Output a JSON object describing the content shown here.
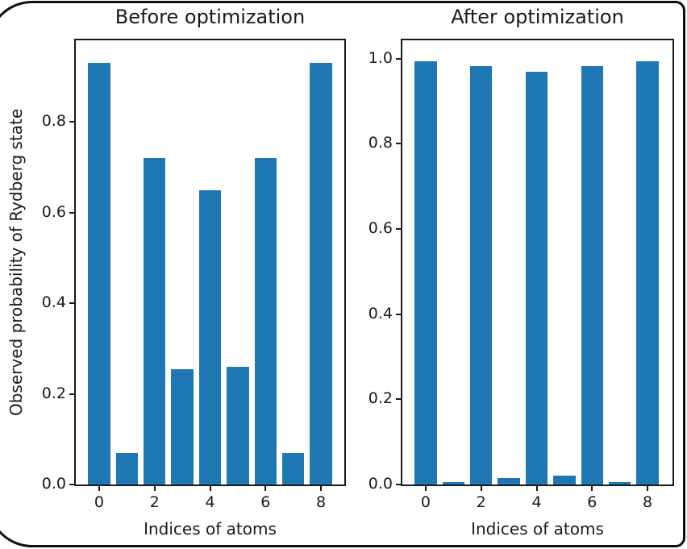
{
  "figure": {
    "frame_border_color": "#0f0f0f",
    "background_color": "#ffffff",
    "text_color": "#1a1a1a"
  },
  "chart_data": [
    {
      "type": "bar",
      "title": "Before optimization",
      "xlabel": "Indices of atoms",
      "ylabel": "Observed probability of Rydberg state",
      "categories": [
        0,
        1,
        2,
        3,
        4,
        5,
        6,
        7,
        8
      ],
      "values": [
        0.93,
        0.07,
        0.72,
        0.255,
        0.65,
        0.26,
        0.72,
        0.07,
        0.93
      ],
      "xticks": [
        0,
        2,
        4,
        6,
        8
      ],
      "yticks": [
        0.0,
        0.2,
        0.4,
        0.6,
        0.8
      ],
      "xlim": [
        -0.84,
        8.84
      ],
      "ylim": [
        0,
        0.98
      ],
      "bar_color": "#1f77b4",
      "bar_width": 0.8,
      "grid": false,
      "legend": null
    },
    {
      "type": "bar",
      "title": "After optimization",
      "xlabel": "Indices of atoms",
      "ylabel": null,
      "categories": [
        0,
        1,
        2,
        3,
        4,
        5,
        6,
        7,
        8
      ],
      "values": [
        0.993,
        0.006,
        0.983,
        0.016,
        0.97,
        0.02,
        0.983,
        0.006,
        0.993
      ],
      "xticks": [
        0,
        2,
        4,
        6,
        8
      ],
      "yticks": [
        0.0,
        0.2,
        0.4,
        0.6,
        0.8,
        1.0
      ],
      "xlim": [
        -0.84,
        8.84
      ],
      "ylim": [
        0,
        1.043
      ],
      "bar_color": "#1f77b4",
      "bar_width": 0.8,
      "grid": false,
      "legend": null
    }
  ]
}
